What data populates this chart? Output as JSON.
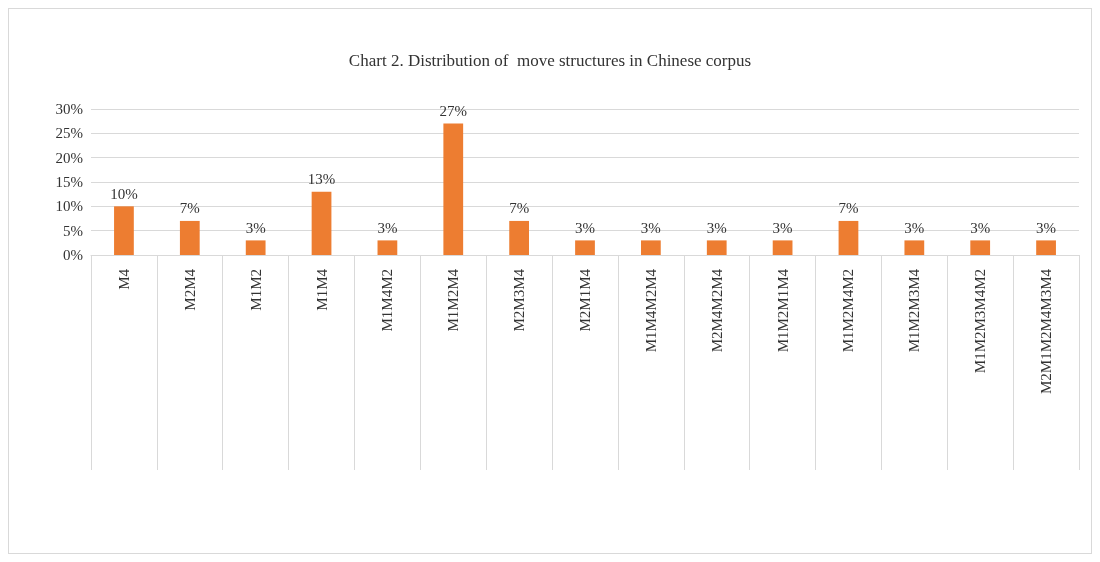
{
  "chart_data": {
    "type": "bar",
    "title": "Chart 2. Distribution of  move structures in Chinese corpus",
    "categories": [
      "M4",
      "M2M4",
      "M1M2",
      "M1M4",
      "M1M4M2",
      "M1M2M4",
      "M2M3M4",
      "M2M1M4",
      "M1M4M2M4",
      "M2M4M2M4",
      "M1M2M1M4",
      "M1M2M4M2",
      "M1M2M3M4",
      "M1M2M3M4M2",
      "M2M1M2M4M3M4"
    ],
    "values": [
      10,
      7,
      3,
      13,
      3,
      27,
      7,
      3,
      3,
      3,
      3,
      7,
      3,
      3,
      3
    ],
    "value_labels": [
      "10%",
      "7%",
      "3%",
      "13%",
      "3%",
      "27%",
      "7%",
      "3%",
      "3%",
      "3%",
      "3%",
      "7%",
      "3%",
      "3%",
      "3%"
    ],
    "color": "#ed7d31",
    "ylim": [
      0,
      30
    ],
    "yticks": [
      {
        "value": 0,
        "label": "0%"
      },
      {
        "value": 5,
        "label": "5%"
      },
      {
        "value": 10,
        "label": "10%"
      },
      {
        "value": 15,
        "label": "15%"
      },
      {
        "value": 20,
        "label": "20%"
      },
      {
        "value": 25,
        "label": "25%"
      },
      {
        "value": 30,
        "label": "30%"
      }
    ],
    "grid": "y"
  }
}
